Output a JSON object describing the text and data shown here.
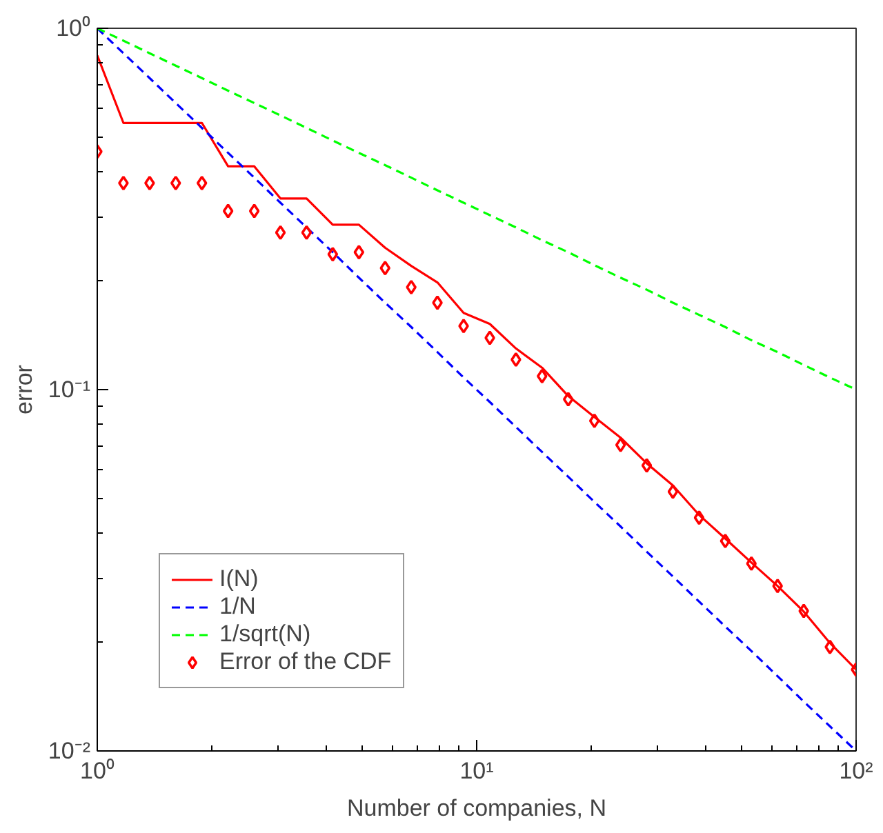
{
  "chart_data": {
    "type": "line",
    "xlabel": "Number of companies, N",
    "ylabel": "error",
    "log": "xy",
    "grid": false,
    "legend": "bottom left",
    "xlim": [
      1,
      100
    ],
    "ylim": [
      0.01,
      1
    ],
    "xticks": [
      {
        "value": 1,
        "label": "10⁰"
      },
      {
        "value": 10,
        "label": "10¹"
      },
      {
        "value": 100,
        "label": "10²"
      }
    ],
    "yticks": [
      {
        "value": 0.01,
        "label": "10⁻²"
      },
      {
        "value": 0.1,
        "label": "10⁻¹"
      },
      {
        "value": 1,
        "label": "10⁰"
      }
    ],
    "x": [
      1,
      1.172,
      1.374,
      1.61,
      1.887,
      2.212,
      2.593,
      3.039,
      3.562,
      4.175,
      4.894,
      5.736,
      6.723,
      7.88,
      9.237,
      10.83,
      12.69,
      14.87,
      17.43,
      20.43,
      23.95,
      28.07,
      32.9,
      38.57,
      45.2,
      52.98,
      62.1,
      72.79,
      85.32,
      100
    ],
    "series": [
      {
        "name": "I(N)",
        "color": "#ff0000",
        "line_style": "solid",
        "marker": "none",
        "values": [
          0.841,
          0.547,
          0.547,
          0.547,
          0.547,
          0.415,
          0.415,
          0.338,
          0.338,
          0.286,
          0.286,
          0.247,
          0.22,
          0.198,
          0.163,
          0.152,
          0.13,
          0.115,
          0.096,
          0.084,
          0.0736,
          0.0625,
          0.0543,
          0.045,
          0.0387,
          0.0332,
          0.0286,
          0.0243,
          0.0199,
          0.0168
        ]
      },
      {
        "name": "1/N",
        "color": "#0000ff",
        "line_style": "dashed",
        "marker": "none",
        "values": [
          1,
          0.853,
          0.728,
          0.621,
          0.53,
          0.452,
          0.386,
          0.329,
          0.281,
          0.24,
          0.204,
          0.174,
          0.149,
          0.127,
          0.108,
          0.0924,
          0.0788,
          0.0672,
          0.0574,
          0.0489,
          0.0418,
          0.0356,
          0.0304,
          0.0259,
          0.0221,
          0.0189,
          0.0161,
          0.0137,
          0.0117,
          0.01
        ]
      },
      {
        "name": "1/sqrt(N)",
        "color": "#00ff00",
        "line_style": "dashed",
        "marker": "none",
        "values": [
          1,
          0.924,
          0.853,
          0.788,
          0.728,
          0.672,
          0.621,
          0.574,
          0.53,
          0.489,
          0.452,
          0.418,
          0.386,
          0.356,
          0.329,
          0.304,
          0.281,
          0.259,
          0.24,
          0.221,
          0.204,
          0.189,
          0.174,
          0.161,
          0.149,
          0.137,
          0.127,
          0.117,
          0.108,
          0.1
        ]
      },
      {
        "name": "Error of the CDF",
        "color": "#ff0000",
        "type": "scatter",
        "marker": "diamond",
        "values": [
          0.456,
          0.373,
          0.373,
          0.373,
          0.373,
          0.312,
          0.312,
          0.272,
          0.272,
          0.237,
          0.24,
          0.217,
          0.192,
          0.174,
          0.15,
          0.139,
          0.121,
          0.109,
          0.094,
          0.082,
          0.0703,
          0.0617,
          0.0522,
          0.0442,
          0.0381,
          0.033,
          0.0286,
          0.0244,
          0.0194,
          0.0168
        ]
      }
    ]
  }
}
